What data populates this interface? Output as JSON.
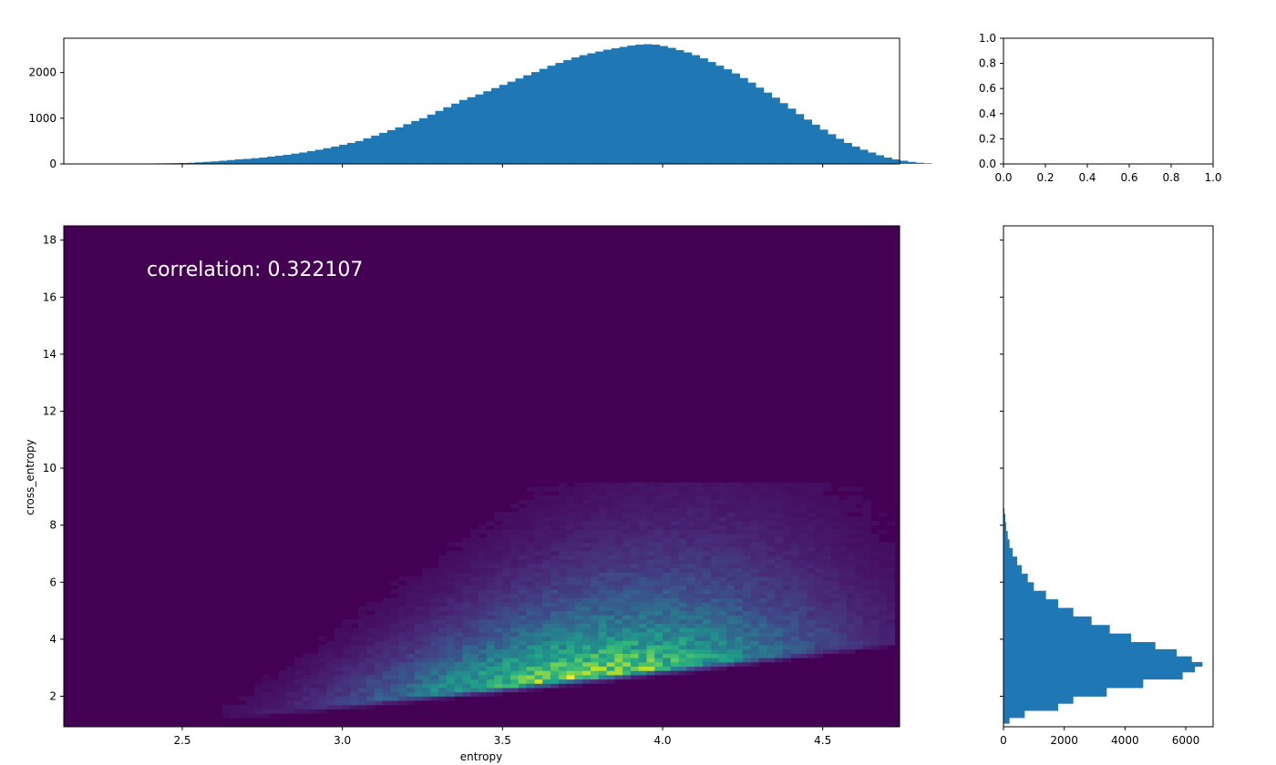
{
  "chart_data": [
    {
      "type": "bar",
      "panel": "top-histogram",
      "orientation": "vertical",
      "xlim": [
        2.13,
        4.74
      ],
      "ylim": [
        0,
        2750
      ],
      "yticks": [
        0,
        1000,
        2000
      ],
      "xticks": [
        2.5,
        3.0,
        3.5,
        4.0,
        4.5
      ],
      "show_xticklabels": false,
      "bar_color": "#1f77b4",
      "bins": {
        "start": 2.39,
        "width": 0.025,
        "counts": [
          10,
          12,
          14,
          16,
          20,
          25,
          35,
          45,
          55,
          70,
          85,
          100,
          110,
          125,
          140,
          160,
          180,
          200,
          225,
          250,
          280,
          310,
          345,
          380,
          420,
          460,
          500,
          560,
          620,
          680,
          740,
          800,
          870,
          940,
          1000,
          1080,
          1160,
          1240,
          1320,
          1400,
          1460,
          1520,
          1590,
          1660,
          1730,
          1800,
          1870,
          1940,
          2010,
          2080,
          2150,
          2210,
          2270,
          2330,
          2380,
          2420,
          2460,
          2500,
          2530,
          2560,
          2590,
          2610,
          2620,
          2610,
          2580,
          2540,
          2490,
          2440,
          2380,
          2310,
          2230,
          2150,
          2070,
          1980,
          1880,
          1780,
          1670,
          1560,
          1450,
          1330,
          1210,
          1090,
          970,
          860,
          750,
          650,
          550,
          460,
          380,
          310,
          250,
          190,
          140,
          100,
          70,
          45,
          25,
          12
        ]
      }
    },
    {
      "type": "heatmap",
      "panel": "joint-2d-histogram",
      "xlabel": "entropy",
      "ylabel": "cross_entropy",
      "xlim": [
        2.13,
        4.74
      ],
      "ylim": [
        0.93,
        18.5
      ],
      "xticks": [
        2.5,
        3.0,
        3.5,
        4.0,
        4.5
      ],
      "yticks": [
        2,
        4,
        6,
        8,
        10,
        12,
        14,
        16,
        18
      ],
      "colormap": "viridis",
      "background_color": "#440154",
      "annotation": "correlation: 0.322107",
      "density_model": {
        "peak_x": 3.75,
        "floor_slope": 1.25,
        "floor_intercept": -2.45,
        "floor_offset_min": 0.75,
        "spread_base": 0.6,
        "spread_slope": 0.9,
        "x_sigma": 0.42
      }
    },
    {
      "type": "bar",
      "panel": "right-histogram",
      "orientation": "horizontal",
      "xlim": [
        0,
        6900
      ],
      "ylim": [
        0.93,
        18.5
      ],
      "xticks": [
        0,
        2000,
        4000,
        6000
      ],
      "yticks": [
        2,
        4,
        6,
        8,
        10,
        12,
        14,
        16,
        18
      ],
      "show_yticklabels": false,
      "bar_color": "#1f77b4",
      "bins": [
        {
          "y0": 1.05,
          "y1": 1.25,
          "value": 200
        },
        {
          "y0": 1.25,
          "y1": 1.5,
          "value": 700
        },
        {
          "y0": 1.5,
          "y1": 1.75,
          "value": 1800
        },
        {
          "y0": 1.75,
          "y1": 2.0,
          "value": 2300
        },
        {
          "y0": 2.0,
          "y1": 2.3,
          "value": 3400
        },
        {
          "y0": 2.3,
          "y1": 2.6,
          "value": 4600
        },
        {
          "y0": 2.6,
          "y1": 2.85,
          "value": 5900
        },
        {
          "y0": 2.85,
          "y1": 3.05,
          "value": 6300
        },
        {
          "y0": 3.05,
          "y1": 3.2,
          "value": 6550
        },
        {
          "y0": 3.2,
          "y1": 3.4,
          "value": 6200
        },
        {
          "y0": 3.4,
          "y1": 3.65,
          "value": 5700
        },
        {
          "y0": 3.65,
          "y1": 3.9,
          "value": 5000
        },
        {
          "y0": 3.9,
          "y1": 4.2,
          "value": 4200
        },
        {
          "y0": 4.2,
          "y1": 4.5,
          "value": 3500
        },
        {
          "y0": 4.5,
          "y1": 4.8,
          "value": 2900
        },
        {
          "y0": 4.8,
          "y1": 5.1,
          "value": 2300
        },
        {
          "y0": 5.1,
          "y1": 5.4,
          "value": 1800
        },
        {
          "y0": 5.4,
          "y1": 5.7,
          "value": 1400
        },
        {
          "y0": 5.7,
          "y1": 6.0,
          "value": 1000
        },
        {
          "y0": 6.0,
          "y1": 6.3,
          "value": 800
        },
        {
          "y0": 6.3,
          "y1": 6.6,
          "value": 600
        },
        {
          "y0": 6.6,
          "y1": 6.9,
          "value": 450
        },
        {
          "y0": 6.9,
          "y1": 7.2,
          "value": 300
        },
        {
          "y0": 7.2,
          "y1": 7.5,
          "value": 200
        },
        {
          "y0": 7.5,
          "y1": 7.8,
          "value": 140
        },
        {
          "y0": 7.8,
          "y1": 8.1,
          "value": 90
        },
        {
          "y0": 8.1,
          "y1": 8.4,
          "value": 60
        },
        {
          "y0": 8.4,
          "y1": 8.6,
          "value": 30
        }
      ]
    },
    {
      "type": "line",
      "panel": "empty-corner-axes",
      "xlim": [
        0.0,
        1.0
      ],
      "ylim": [
        0.0,
        1.0
      ],
      "xticks": [
        "0.0",
        "0.2",
        "0.4",
        "0.6",
        "0.8",
        "1.0"
      ],
      "yticks": [
        "0.0",
        "0.2",
        "0.4",
        "0.6",
        "0.8",
        "1.0"
      ],
      "series": []
    }
  ]
}
